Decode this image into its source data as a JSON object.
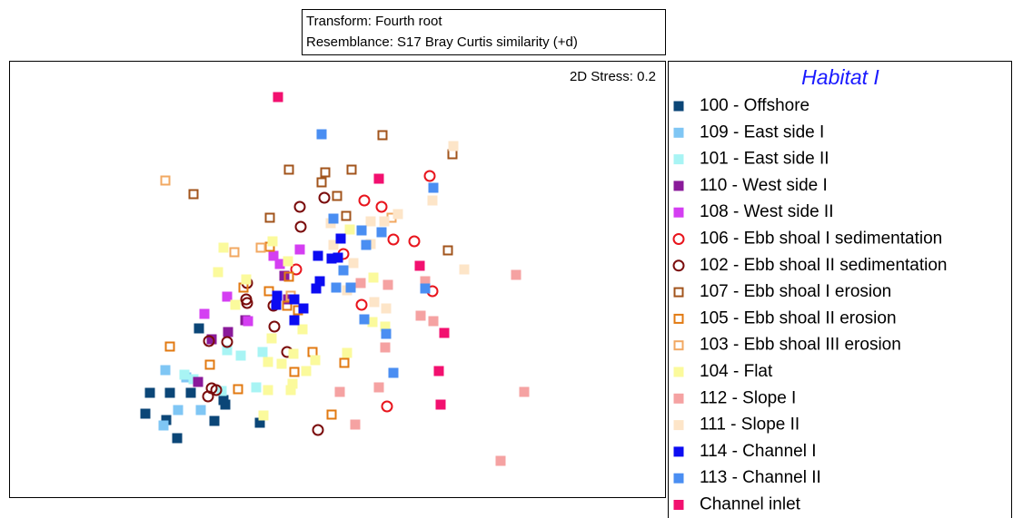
{
  "chart_data": {
    "type": "scatter",
    "header": [
      "Transform: Fourth root",
      "Resemblance: S17 Bray Curtis similarity (+d)"
    ],
    "annotation": "2D Stress: 0.2",
    "legend_title": "Habitat I",
    "xlim": [
      0,
      722
    ],
    "ylim": [
      0,
      480
    ],
    "series": [
      {
        "name": "100 - Offshore",
        "color": "#0b4677",
        "marker": "square",
        "filled": true,
        "x": [
          155,
          177,
          150,
          173,
          200,
          185,
          226,
          238,
          276,
          209,
          236
        ],
        "values": [
          115,
          115,
          92,
          85,
          115,
          65,
          84,
          102,
          82,
          186,
          107
        ]
      },
      {
        "name": "109 - East side I",
        "color": "#7fc6f4",
        "marker": "square",
        "filled": true,
        "x": [
          172,
          170,
          211,
          195,
          186
        ],
        "values": [
          140,
          79,
          96,
          132,
          96
        ]
      },
      {
        "name": "101 - East side II",
        "color": "#a8f4f4",
        "marker": "square",
        "filled": true,
        "x": [
          193,
          203,
          240,
          255,
          279,
          272,
          234
        ],
        "values": [
          135,
          130,
          162,
          156,
          160,
          121,
          117
        ]
      },
      {
        "name": "110 - West side I",
        "color": "#8a1a9a",
        "marker": "square",
        "filled": true,
        "x": [
          208,
          241,
          260,
          303,
          307,
          223
        ],
        "values": [
          127,
          182,
          195,
          244,
          218,
          174
        ]
      },
      {
        "name": "108 - West side II",
        "color": "#d43ef2",
        "marker": "square",
        "filled": true,
        "x": [
          240,
          215,
          291,
          263,
          320,
          298
        ],
        "values": [
          221,
          202,
          266,
          194,
          273,
          257
        ]
      },
      {
        "name": "106 - Ebb shoal I sedimentation",
        "color": "#e8141c",
        "marker": "circle",
        "filled": false,
        "x": [
          463,
          410,
          391,
          368,
          423,
          446,
          466,
          388,
          416,
          316
        ],
        "values": [
          354,
          320,
          327,
          268,
          284,
          282,
          227,
          212,
          100,
          251
        ]
      },
      {
        "name": "102 - Ebb shoal II sedimentation",
        "color": "#7a0c0c",
        "marker": "circle",
        "filled": false,
        "x": [
          347,
          320,
          321,
          262,
          292,
          261,
          306,
          291,
          223,
          228,
          220,
          240,
          340,
          219,
          262
        ],
        "values": [
          330,
          320,
          298,
          236,
          188,
          218,
          160,
          211,
          120,
          118,
          172,
          171,
          74,
          111,
          214
        ]
      },
      {
        "name": "107 - Ebb shoal I erosion",
        "color": "#a2541c",
        "marker": "square",
        "filled": false,
        "x": [
          411,
          308,
          348,
          377,
          344,
          488,
          203,
          361,
          287,
          483,
          371
        ],
        "values": [
          399,
          361,
          358,
          361,
          347,
          378,
          334,
          332,
          308,
          272,
          310
        ]
      },
      {
        "name": "105 - Ebb shoal II erosion",
        "color": "#e27a12",
        "marker": "square",
        "filled": false,
        "x": [
          287,
          308,
          318,
          306,
          355,
          369,
          314,
          252,
          221,
          177,
          334,
          258,
          286
        ],
        "values": [
          276,
          243,
          206,
          211,
          91,
          148,
          138,
          119,
          146,
          166,
          160,
          231,
          227
        ]
      },
      {
        "name": "103 - Ebb shoal III erosion",
        "color": "#f2a862",
        "marker": "square",
        "filled": false,
        "x": [
          172,
          277,
          421,
          248,
          310
        ],
        "values": [
          349,
          275,
          308,
          270,
          222
        ]
      },
      {
        "name": "104 - Flat",
        "color": "#fbfa9c",
        "marker": "square",
        "filled": true,
        "x": [
          236,
          230,
          285,
          300,
          312,
          327,
          337,
          313,
          323,
          372,
          400,
          401,
          289,
          310,
          249,
          414,
          280,
          261,
          307,
          290,
          285,
          375
        ],
        "values": [
          275,
          248,
          149,
          147,
          125,
          139,
          151,
          158,
          185,
          159,
          193,
          242,
          175,
          118,
          212,
          188,
          90,
          240,
          260,
          282,
          118,
          295
        ]
      },
      {
        "name": "112 - Slope I",
        "color": "#f5a2a2",
        "marker": "square",
        "filled": true,
        "x": [
          558,
          567,
          541,
          453,
          467,
          381,
          364,
          407,
          417,
          458,
          414,
          387
        ],
        "values": [
          245,
          116,
          40,
          200,
          194,
          80,
          116,
          121,
          234,
          238,
          165,
          236
        ]
      },
      {
        "name": "111 - Slope II",
        "color": "#fde5c8",
        "marker": "square",
        "filled": true,
        "x": [
          489,
          466,
          501,
          428,
          413,
          402,
          357,
          379,
          415,
          372,
          398,
          354,
          398
        ],
        "values": [
          387,
          327,
          251,
          312,
          304,
          215,
          278,
          258,
          208,
          228,
          279,
          302,
          304
        ]
      },
      {
        "name": "114 - Channel I",
        "color": "#0c0cf2",
        "marker": "square",
        "filled": true,
        "x": [
          340,
          355,
          362,
          338,
          342,
          324,
          314,
          294,
          314,
          365,
          295
        ],
        "values": [
          266,
          263,
          264,
          230,
          238,
          208,
          195,
          212,
          218,
          285,
          222
        ]
      },
      {
        "name": "113 - Channel II",
        "color": "#4a8ef2",
        "marker": "square",
        "filled": true,
        "x": [
          344,
          467,
          357,
          388,
          410,
          393,
          368,
          376,
          360,
          391,
          415,
          423,
          458
        ],
        "values": [
          400,
          341,
          307,
          294,
          292,
          278,
          250,
          231,
          231,
          196,
          180,
          137,
          230
        ]
      },
      {
        "name": "Channel inlet",
        "color": "#f2106f",
        "marker": "square",
        "filled": true,
        "x": [
          296,
          407,
          452,
          479,
          473,
          475
        ],
        "values": [
          441,
          351,
          255,
          181,
          139,
          102
        ]
      }
    ]
  }
}
